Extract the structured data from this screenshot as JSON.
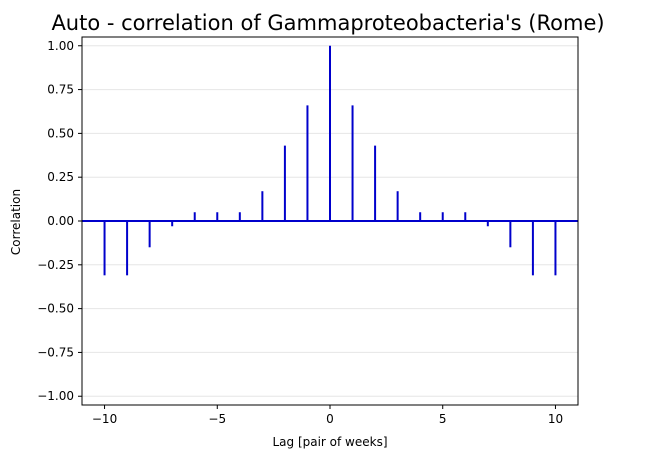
{
  "chart_data": {
    "type": "bar",
    "title": "Auto - correlation of Gammaproteobacteria's (Rome)",
    "xlabel": "Lag [pair of weeks]",
    "ylabel": "Correlation",
    "xlim": [
      -11,
      11
    ],
    "ylim": [
      -1.05,
      1.05
    ],
    "grid": "horizontal",
    "x": [
      -10,
      -9,
      -8,
      -7,
      -6,
      -5,
      -4,
      -3,
      -2,
      -1,
      0,
      1,
      2,
      3,
      4,
      5,
      6,
      7,
      8,
      9,
      10
    ],
    "values": [
      -0.31,
      -0.31,
      -0.15,
      -0.03,
      0.05,
      0.05,
      0.05,
      0.17,
      0.43,
      0.66,
      1.0,
      0.66,
      0.43,
      0.17,
      0.05,
      0.05,
      0.05,
      -0.03,
      -0.15,
      -0.31,
      -0.31
    ],
    "x_ticks": [
      -10,
      -5,
      0,
      5,
      10
    ],
    "x_tick_labels": [
      "−10",
      "−5",
      "0",
      "5",
      "10"
    ],
    "y_ticks": [
      -1.0,
      -0.75,
      -0.5,
      -0.25,
      0.0,
      0.25,
      0.5,
      0.75,
      1.0
    ],
    "y_tick_labels": [
      "−1.00",
      "−0.75",
      "−0.50",
      "−0.25",
      "0.00",
      "0.25",
      "0.50",
      "0.75",
      "1.00"
    ],
    "bar_color": "#0000cc",
    "baseline_color": "#0000cc",
    "grid_color": "#e6e6e6"
  }
}
